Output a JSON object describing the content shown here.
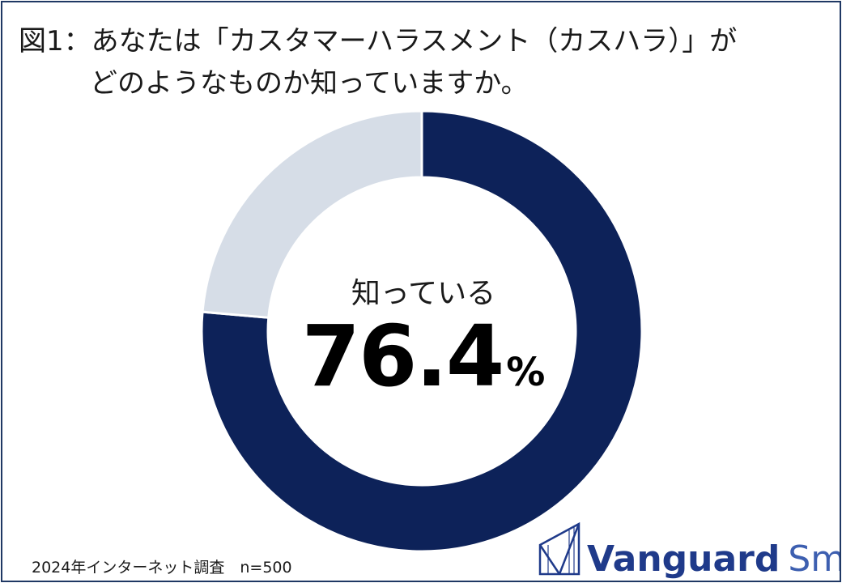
{
  "title": {
    "line1": "図1：あなたは「カスタマーハラスメント（カスハラ）」が",
    "line2": "どのようなものか知っていますか。"
  },
  "chart_data": {
    "type": "pie",
    "labels": [
      "知っている",
      ""
    ],
    "values": [
      76.4,
      23.6
    ],
    "colors": [
      "#0d2259",
      "#d6dde7"
    ],
    "center_label": "知っている",
    "center_value": "76.4",
    "center_unit": "%"
  },
  "footnote": "2024年インターネット調査　n=500",
  "logo": {
    "brand": "Vanguard",
    "brand2": "Smith"
  }
}
